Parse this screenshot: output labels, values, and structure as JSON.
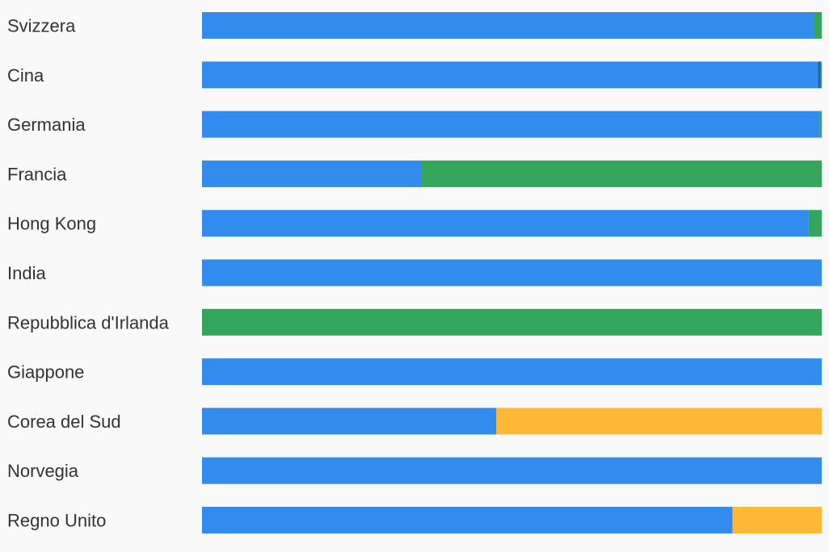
{
  "chart_data": {
    "type": "bar",
    "orientation": "horizontal",
    "stacked": true,
    "normalized": true,
    "title": "",
    "xlabel": "",
    "ylabel": "",
    "xlim": [
      0,
      100
    ],
    "grid": false,
    "legend": "none",
    "categories": [
      "Svizzera",
      "Cina",
      "Germania",
      "Francia",
      "Hong Kong",
      "India",
      "Repubblica d'Irlanda",
      "Giappone",
      "Corea del Sud",
      "Norvegia",
      "Regno Unito"
    ],
    "series": [
      {
        "color": "#328cee",
        "values": [
          98.7,
          99.4,
          99.7,
          35.4,
          97.9,
          100,
          0,
          100,
          47.5,
          100,
          85.6
        ]
      },
      {
        "color": "#1a5fb4",
        "values": [
          0,
          0.4,
          0,
          0,
          0,
          0,
          0,
          0,
          0,
          0,
          0
        ]
      },
      {
        "color": "#33a65c",
        "values": [
          1.3,
          0.2,
          0.3,
          64.6,
          2.1,
          0,
          100,
          0,
          0,
          0,
          0
        ]
      },
      {
        "color": "#ffb835",
        "values": [
          0,
          0,
          0,
          0,
          0,
          0,
          0,
          0,
          52.5,
          0,
          14.4
        ]
      }
    ]
  }
}
